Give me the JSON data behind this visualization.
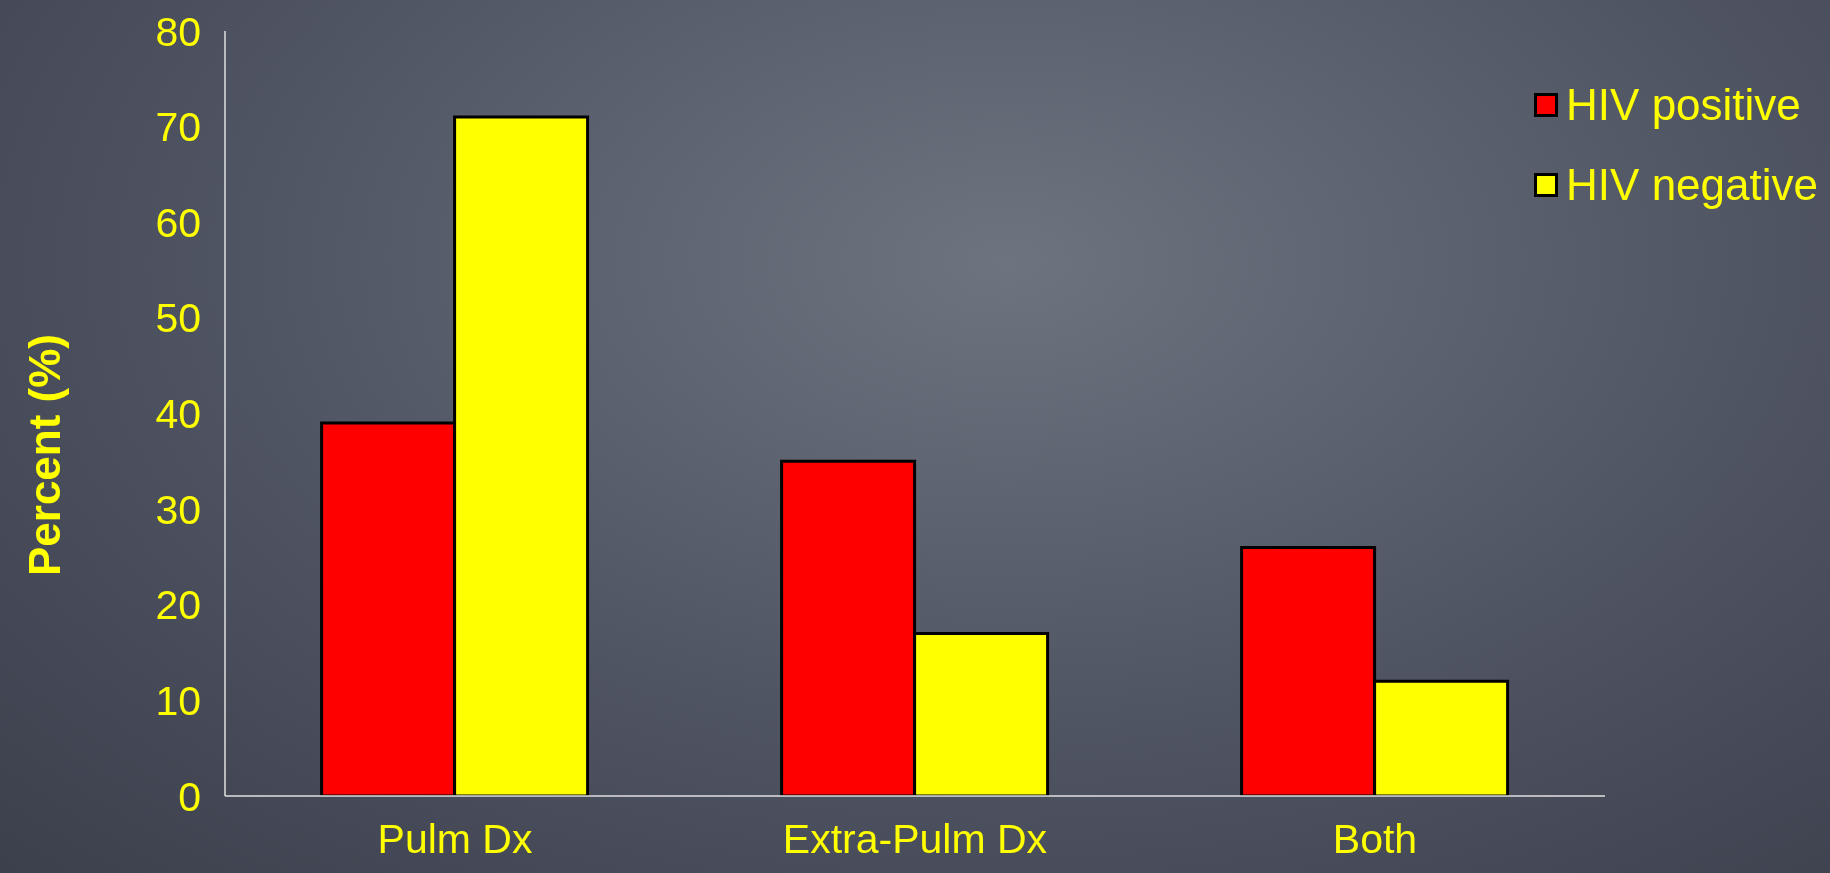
{
  "chart_data": {
    "type": "bar",
    "ylabel": "Percent (%)",
    "categories": [
      "Pulm Dx",
      "Extra-Pulm Dx",
      "Both"
    ],
    "series": [
      {
        "name": "HIV positive",
        "color": "#ff0000",
        "values": [
          39,
          35,
          26
        ]
      },
      {
        "name": "HIV negative",
        "color": "#ffff00",
        "values": [
          71,
          17,
          12
        ]
      }
    ],
    "ylim": [
      0,
      80
    ],
    "yticks": [
      0,
      10,
      20,
      30,
      40,
      50,
      60,
      70,
      80
    ],
    "grid": false,
    "legend": "top right"
  }
}
